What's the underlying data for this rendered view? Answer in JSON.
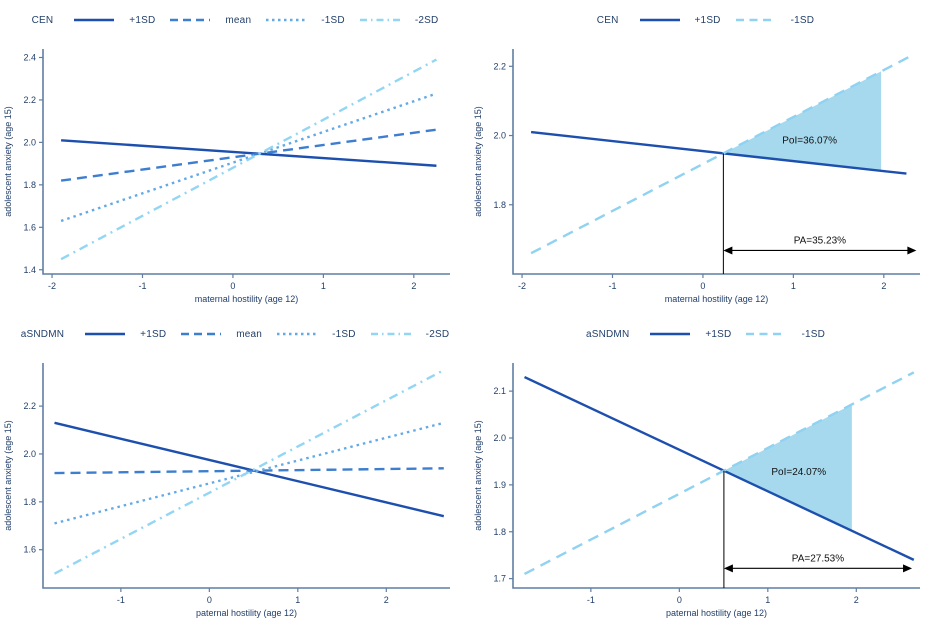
{
  "figure": {
    "description": "Simple slopes and regions of significance plots",
    "background": "#ffffff"
  },
  "colors": {
    "solid_line": "#1d4fae",
    "dashed_line": "#3e7ecf",
    "dotted_line": "#63a9e6",
    "dashdot_line": "#93d6f3",
    "light_dashed_line": "#8fd2f1",
    "region_fill": "#a6d9ee",
    "axis_line": "#5e7ea3",
    "chart_text": "#23406b",
    "annotation_text": "#111111"
  },
  "chart_data": [
    {
      "type": "line",
      "position": "top-left",
      "legend": {
        "title": "CEN",
        "entries": [
          {
            "label": "+1SD",
            "style": "solid",
            "color_key": "solid_line"
          },
          {
            "label": "mean",
            "style": "dashed",
            "color_key": "dashed_line"
          },
          {
            "label": "-1SD",
            "style": "dotted",
            "color_key": "dotted_line"
          },
          {
            "label": "-2SD",
            "style": "dashdot",
            "color_key": "dashdot_line"
          }
        ]
      },
      "xlabel": "maternal hostility (age 12)",
      "ylabel": "adolescent anxiety (age 15)",
      "xlim": [
        -2.1,
        2.4
      ],
      "ylim": [
        1.38,
        2.44
      ],
      "xticks": [
        -2,
        -1,
        0,
        1,
        2
      ],
      "xtick_labels": [
        "-2",
        "-1",
        "0",
        "1",
        "2"
      ],
      "yticks": [
        1.4,
        1.6,
        1.8,
        2.0,
        2.2,
        2.4
      ],
      "ytick_labels": [
        "1.4",
        "1.6",
        "1.8",
        "2.0",
        "2.2",
        "2.4"
      ],
      "series": [
        {
          "name": "+1SD",
          "style": "solid",
          "color_key": "solid_line",
          "points": [
            [
              -1.9,
              2.01
            ],
            [
              2.25,
              1.89
            ]
          ]
        },
        {
          "name": "mean",
          "style": "dashed",
          "color_key": "dashed_line",
          "points": [
            [
              -1.9,
              1.82
            ],
            [
              2.25,
              2.06
            ]
          ]
        },
        {
          "name": "-1SD",
          "style": "dotted",
          "color_key": "dotted_line",
          "points": [
            [
              -1.9,
              1.63
            ],
            [
              2.25,
              2.23
            ]
          ]
        },
        {
          "name": "-2SD",
          "style": "dashdot",
          "color_key": "dashdot_line",
          "points": [
            [
              -1.9,
              1.45
            ],
            [
              2.25,
              2.39
            ]
          ]
        }
      ]
    },
    {
      "type": "line",
      "position": "top-right",
      "legend": {
        "title": "CEN",
        "entries": [
          {
            "label": "+1SD",
            "style": "solid",
            "color_key": "solid_line"
          },
          {
            "label": "-1SD",
            "style": "lightdash",
            "color_key": "light_dashed_line"
          }
        ]
      },
      "xlabel": "maternal hostility (age 12)",
      "ylabel": "adolescent anxiety (age 15)",
      "xlim": [
        -2.1,
        2.4
      ],
      "ylim": [
        1.6,
        2.25
      ],
      "xticks": [
        -2,
        -1,
        0,
        1,
        2
      ],
      "xtick_labels": [
        "-2",
        "-1",
        "0",
        "1",
        "2"
      ],
      "yticks": [
        1.8,
        2.0,
        2.2
      ],
      "ytick_labels": [
        "1.8",
        "2.0",
        "2.2"
      ],
      "series": [
        {
          "name": "+1SD",
          "style": "solid",
          "color_key": "solid_line",
          "points": [
            [
              -1.9,
              2.01
            ],
            [
              2.25,
              1.89
            ]
          ]
        },
        {
          "name": "-1SD",
          "style": "lightdash",
          "color_key": "light_dashed_line",
          "points": [
            [
              -1.9,
              1.66
            ],
            [
              2.3,
              2.23
            ]
          ]
        }
      ],
      "annotations": {
        "region": {
          "x_end": 1.97,
          "fill_key": "region_fill"
        },
        "poi_label": {
          "text": "PoI=36.07%",
          "x": 1.18,
          "y": 1.985
        },
        "pa_arrow": {
          "y": 1.668,
          "x_end": 2.36,
          "label": "PA=35.23%"
        }
      }
    },
    {
      "type": "line",
      "position": "bottom-left",
      "legend": {
        "title": "aSNDMN",
        "entries": [
          {
            "label": "+1SD",
            "style": "solid",
            "color_key": "solid_line"
          },
          {
            "label": "mean",
            "style": "dashed",
            "color_key": "dashed_line"
          },
          {
            "label": "-1SD",
            "style": "dotted",
            "color_key": "dotted_line"
          },
          {
            "label": "-2SD",
            "style": "dashdot",
            "color_key": "dashdot_line"
          }
        ]
      },
      "xlabel": "paternal hostility (age 12)",
      "ylabel": "adolescent anxiety (age 15)",
      "xlim": [
        -1.88,
        2.72
      ],
      "ylim": [
        1.44,
        2.38
      ],
      "xticks": [
        -1,
        0,
        1,
        2
      ],
      "xtick_labels": [
        "-1",
        "0",
        "1",
        "2"
      ],
      "yticks": [
        1.6,
        1.8,
        2.0,
        2.2
      ],
      "ytick_labels": [
        "1.6",
        "1.8",
        "2.0",
        "2.2"
      ],
      "series": [
        {
          "name": "+1SD",
          "style": "solid",
          "color_key": "solid_line",
          "points": [
            [
              -1.75,
              2.13
            ],
            [
              2.65,
              1.74
            ]
          ]
        },
        {
          "name": "mean",
          "style": "dashed",
          "color_key": "dashed_line",
          "points": [
            [
              -1.75,
              1.92
            ],
            [
              2.65,
              1.94
            ]
          ]
        },
        {
          "name": "-1SD",
          "style": "dotted",
          "color_key": "dotted_line",
          "points": [
            [
              -1.75,
              1.71
            ],
            [
              2.65,
              2.13
            ]
          ]
        },
        {
          "name": "-2SD",
          "style": "dashdot",
          "color_key": "dashdot_line",
          "points": [
            [
              -1.75,
              1.5
            ],
            [
              2.65,
              2.35
            ]
          ]
        }
      ]
    },
    {
      "type": "line",
      "position": "bottom-right",
      "legend": {
        "title": "aSNDMN",
        "entries": [
          {
            "label": "+1SD",
            "style": "solid",
            "color_key": "solid_line"
          },
          {
            "label": "-1SD",
            "style": "lightdash",
            "color_key": "light_dashed_line"
          }
        ]
      },
      "xlabel": "paternal hostility (age 12)",
      "ylabel": "adolescent anxiety (age 15)",
      "xlim": [
        -1.88,
        2.72
      ],
      "ylim": [
        1.68,
        2.16
      ],
      "xticks": [
        -1,
        0,
        1,
        2
      ],
      "xtick_labels": [
        "-1",
        "0",
        "1",
        "2"
      ],
      "yticks": [
        1.7,
        1.8,
        1.9,
        2.0,
        2.1
      ],
      "ytick_labels": [
        "1.7",
        "1.8",
        "1.9",
        "2.0",
        "2.1"
      ],
      "series": [
        {
          "name": "+1SD",
          "style": "solid",
          "color_key": "solid_line",
          "points": [
            [
              -1.75,
              2.13
            ],
            [
              2.65,
              1.74
            ]
          ]
        },
        {
          "name": "-1SD",
          "style": "lightdash",
          "color_key": "light_dashed_line",
          "points": [
            [
              -1.75,
              1.71
            ],
            [
              2.65,
              2.14
            ]
          ]
        }
      ],
      "annotations": {
        "region": {
          "x_end": 1.95,
          "fill_key": "region_fill"
        },
        "poi_label": {
          "text": "PoI=24.07%",
          "x": 1.35,
          "y": 1.928
        },
        "pa_arrow": {
          "y": 1.722,
          "x_end": 2.63,
          "label": "PA=27.53%"
        }
      }
    }
  ]
}
